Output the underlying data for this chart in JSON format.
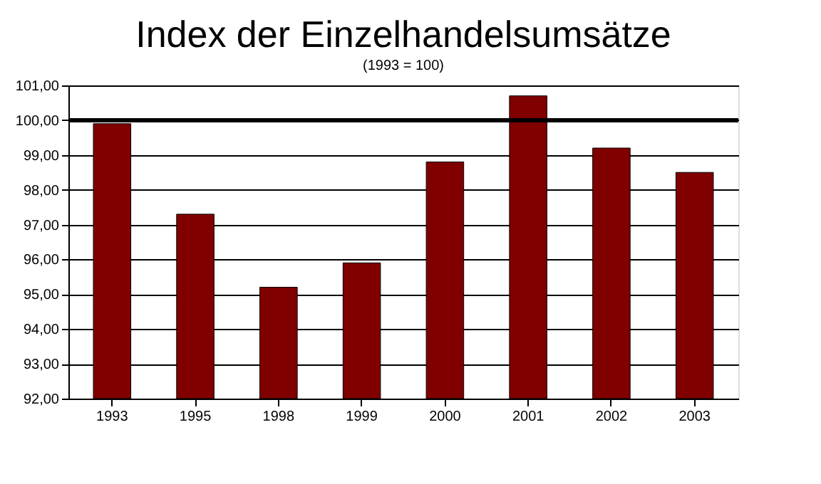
{
  "chart_data": {
    "type": "bar",
    "title": "Index der Einzelhandelsumsätze",
    "subtitle": "(1993 = 100)",
    "categories": [
      "1993",
      "1995",
      "1998",
      "1999",
      "2000",
      "2001",
      "2002",
      "2003"
    ],
    "values": [
      99.9,
      97.3,
      95.2,
      95.9,
      98.8,
      100.7,
      99.2,
      98.5
    ],
    "color": "#800000",
    "ylim": [
      92,
      101
    ],
    "yticks": [
      {
        "value": 92,
        "label": "92,00"
      },
      {
        "value": 93,
        "label": "93,00"
      },
      {
        "value": 94,
        "label": "94,00"
      },
      {
        "value": 95,
        "label": "95,00"
      },
      {
        "value": 96,
        "label": "96,00"
      },
      {
        "value": 97,
        "label": "97,00"
      },
      {
        "value": 98,
        "label": "98,00"
      },
      {
        "value": 99,
        "label": "99,00"
      },
      {
        "value": 100,
        "label": "100,00"
      },
      {
        "value": 101,
        "label": "101,00"
      }
    ],
    "ref_lines": [
      {
        "axis": "y",
        "value": 100,
        "color": "#000000"
      }
    ],
    "grid": "y"
  }
}
